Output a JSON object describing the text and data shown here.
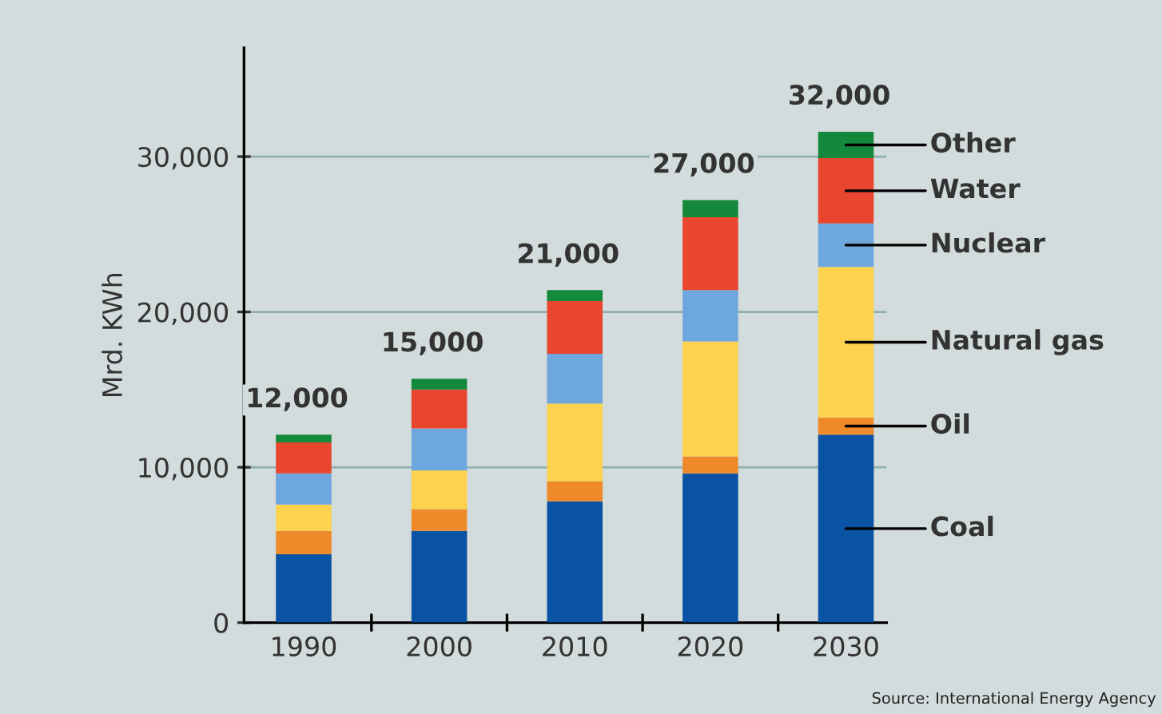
{
  "chart_data": {
    "type": "bar",
    "stacked": true,
    "ylabel": "Mrd. KWh",
    "categories": [
      "1990",
      "2000",
      "2010",
      "2020",
      "2030"
    ],
    "series": [
      {
        "name": "Coal",
        "color": "#0a52a3",
        "values": [
          4400,
          5900,
          7800,
          9600,
          12100
        ]
      },
      {
        "name": "Oil",
        "color": "#ee8a2a",
        "values": [
          1500,
          1400,
          1300,
          1100,
          1100
        ]
      },
      {
        "name": "Natural gas",
        "color": "#fcd24e",
        "values": [
          1700,
          2500,
          5000,
          7400,
          9700
        ]
      },
      {
        "name": "Nuclear",
        "color": "#6ea6de",
        "values": [
          2000,
          2700,
          3200,
          3300,
          2800
        ]
      },
      {
        "name": "Water",
        "color": "#e8462f",
        "values": [
          2000,
          2500,
          3400,
          4700,
          4200
        ]
      },
      {
        "name": "Other",
        "color": "#14893c",
        "values": [
          500,
          700,
          700,
          1100,
          1700
        ]
      }
    ],
    "ylim": [
      0,
      37000
    ],
    "yticks": [
      {
        "value": 0,
        "label": "0"
      },
      {
        "value": 10000,
        "label": "10,000"
      },
      {
        "value": 20000,
        "label": "20,000"
      },
      {
        "value": 30000,
        "label": "30,000"
      }
    ],
    "grid": "y",
    "legend": false,
    "annotations": [
      {
        "text": "12,000",
        "x": "1990",
        "y": 12100
      },
      {
        "text": "15,000",
        "x": "2000",
        "y": 15700
      },
      {
        "text": "21,000",
        "x": "2010",
        "y": 21400
      },
      {
        "text": "27,000",
        "x": "2020",
        "y": 27200
      },
      {
        "text": "32,000",
        "x": "2030",
        "y": 31600
      },
      "Source: International Energy Agency"
    ]
  }
}
